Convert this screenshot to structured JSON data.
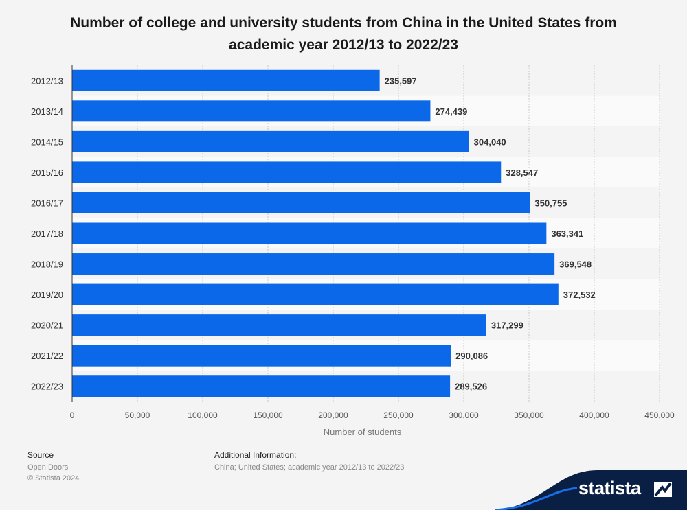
{
  "title": "Number of college and university students from China in the United States from academic year 2012/13 to 2022/23",
  "chart_data": {
    "type": "bar",
    "orientation": "horizontal",
    "title": "Number of college and university students from China in the United States from academic year 2012/13 to 2022/23",
    "categories": [
      "2012/13",
      "2013/14",
      "2014/15",
      "2015/16",
      "2016/17",
      "2017/18",
      "2018/19",
      "2019/20",
      "2020/21",
      "2021/22",
      "2022/23"
    ],
    "values": [
      235597,
      274439,
      304040,
      328547,
      350755,
      363341,
      369548,
      372532,
      317299,
      290086,
      289526
    ],
    "value_labels": [
      "235,597",
      "274,439",
      "304,040",
      "328,547",
      "350,755",
      "363,341",
      "369,548",
      "372,532",
      "317,299",
      "290,086",
      "289,526"
    ],
    "xlabel": "Number of students",
    "xlim": [
      0,
      450000
    ],
    "xticks": [
      0,
      50000,
      100000,
      150000,
      200000,
      250000,
      300000,
      350000,
      400000,
      450000
    ],
    "xtick_labels": [
      "0",
      "50,000",
      "100,000",
      "150,000",
      "200,000",
      "250,000",
      "300,000",
      "350,000",
      "400,000",
      "450,000"
    ],
    "grid": true,
    "bar_color": "#0b68e8"
  },
  "footer": {
    "source_heading": "Source",
    "source_lines": [
      "Open Doors",
      "© Statista 2024"
    ],
    "info_heading": "Additional Information:",
    "info_text": "China; United States; academic year 2012/13 to 2022/23"
  },
  "brand": {
    "name": "statista",
    "icon": "statista-logo-icon"
  }
}
